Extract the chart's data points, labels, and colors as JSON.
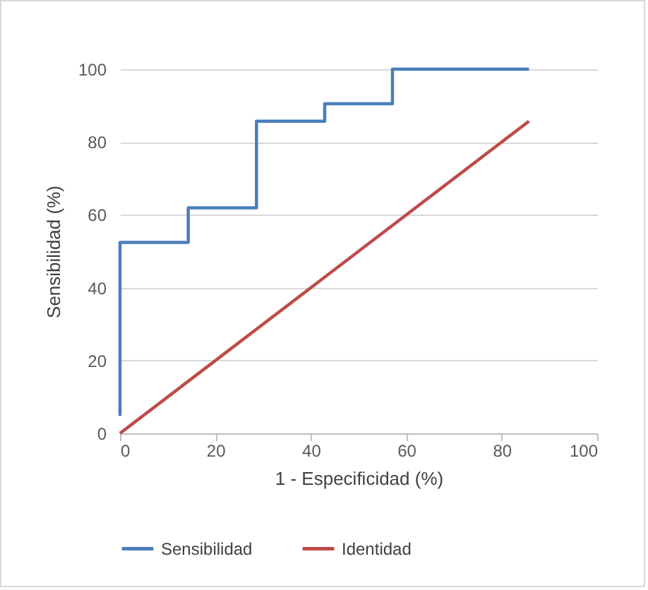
{
  "chart_data": {
    "type": "line",
    "xlabel": "1 - Especificidad (%)",
    "ylabel": "Sensibilidad (%)",
    "xlim": [
      0,
      100
    ],
    "xticks": [
      0,
      20,
      40,
      60,
      80,
      100
    ],
    "ylim": [
      0,
      100
    ],
    "yticks": [
      0,
      20,
      40,
      60,
      80,
      100
    ],
    "grid": "y",
    "legend": "bottom",
    "marker": "none",
    "line_style": "solid",
    "series": [
      {
        "name": "Sensibilidad",
        "color": "#4a7ebb",
        "x": [
          0,
          0,
          14.3,
          14.3,
          28.6,
          28.6,
          42.9,
          42.9,
          57.1,
          57.1,
          85.7
        ],
        "values": [
          4.8,
          52.4,
          52.4,
          61.9,
          61.9,
          85.7,
          85.7,
          90.5,
          90.5,
          100,
          100
        ]
      },
      {
        "name": "Identidad",
        "color": "#be4b48",
        "x": [
          0,
          85.7
        ],
        "values": [
          0,
          85.7
        ]
      }
    ]
  }
}
